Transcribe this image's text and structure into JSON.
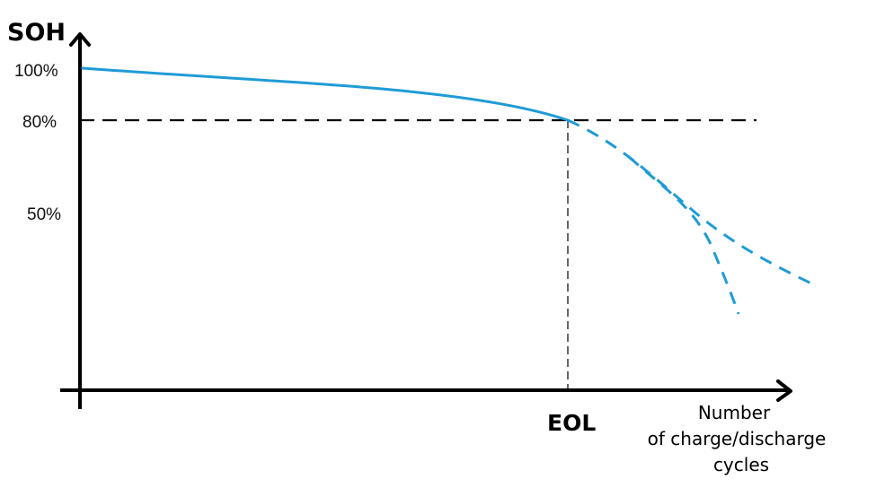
{
  "chart_data": {
    "type": "line",
    "title": "",
    "ylabel": "SOH",
    "xlabel": [
      "Number",
      "of charge/discharge",
      "cycles"
    ],
    "yticks": [
      "100%",
      "80%",
      "50%"
    ],
    "xmarker": "EOL",
    "reference_level": 80,
    "colors": {
      "curve": "#1f9bd6",
      "axis": "#000000"
    }
  }
}
